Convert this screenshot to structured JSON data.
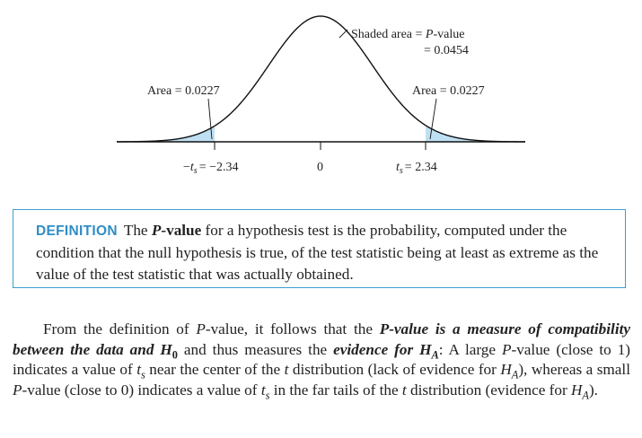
{
  "figure": {
    "shaded_label_line1": "Shaded area = ",
    "shaded_label_pvalue": "P",
    "shaded_label_line1_suffix": "-value",
    "shaded_label_line2": "= 0.0454",
    "left_area_label": "Area = 0.0227",
    "right_area_label": "Area = 0.0227",
    "tick_left": "= −2.34",
    "tick_center": "0",
    "tick_right": "= 2.34",
    "tick_var": "t",
    "tick_sub": "s",
    "curve_color": "#111111",
    "shade_color": "#bfe0f2"
  },
  "definition": {
    "tag": "DEFINITION",
    "p1": "The ",
    "p_bold": "P",
    "p_bold_suffix": "-value",
    "p2": " for a hypothesis test is the probability, computed under the condition that the null hypothesis is true, of the test statistic being at least as extreme as the value of the test statistic that was actually obtained.",
    "border_color": "#3d9fd0"
  },
  "paragraph": {
    "s1": "From the definition of ",
    "s1_p": "P",
    "s2": "-value, it follows that the ",
    "s3_p": "P",
    "s3": "-value is a measure of compatibility between the data and ",
    "s3_h": "H",
    "s3_h_sub": "0",
    "s4": " and thus measures the ",
    "s4_ev": "evidence for ",
    "s4_h": "H",
    "s4_h_sub": "A",
    "s5": ": A large ",
    "s5_p": "P",
    "s6": "-value (close to 1) indicates a value of ",
    "s6_t": "t",
    "s6_t_sub": "s",
    "s7": " near the center of the ",
    "s7_t": "t",
    "s8": " distribution (lack of evidence for ",
    "s8_h": "H",
    "s8_h_sub": "A",
    "s9": "), whereas a small ",
    "s9_p": "P",
    "s10": "-value (close to 0) indicates a value of ",
    "s10_t": "t",
    "s10_t_sub": "s",
    "s11": " in the far tails of the ",
    "s11_t": "t",
    "s12": " distribution (evidence for ",
    "s12_h": "H",
    "s12_h_sub": "A",
    "s13": ")."
  }
}
